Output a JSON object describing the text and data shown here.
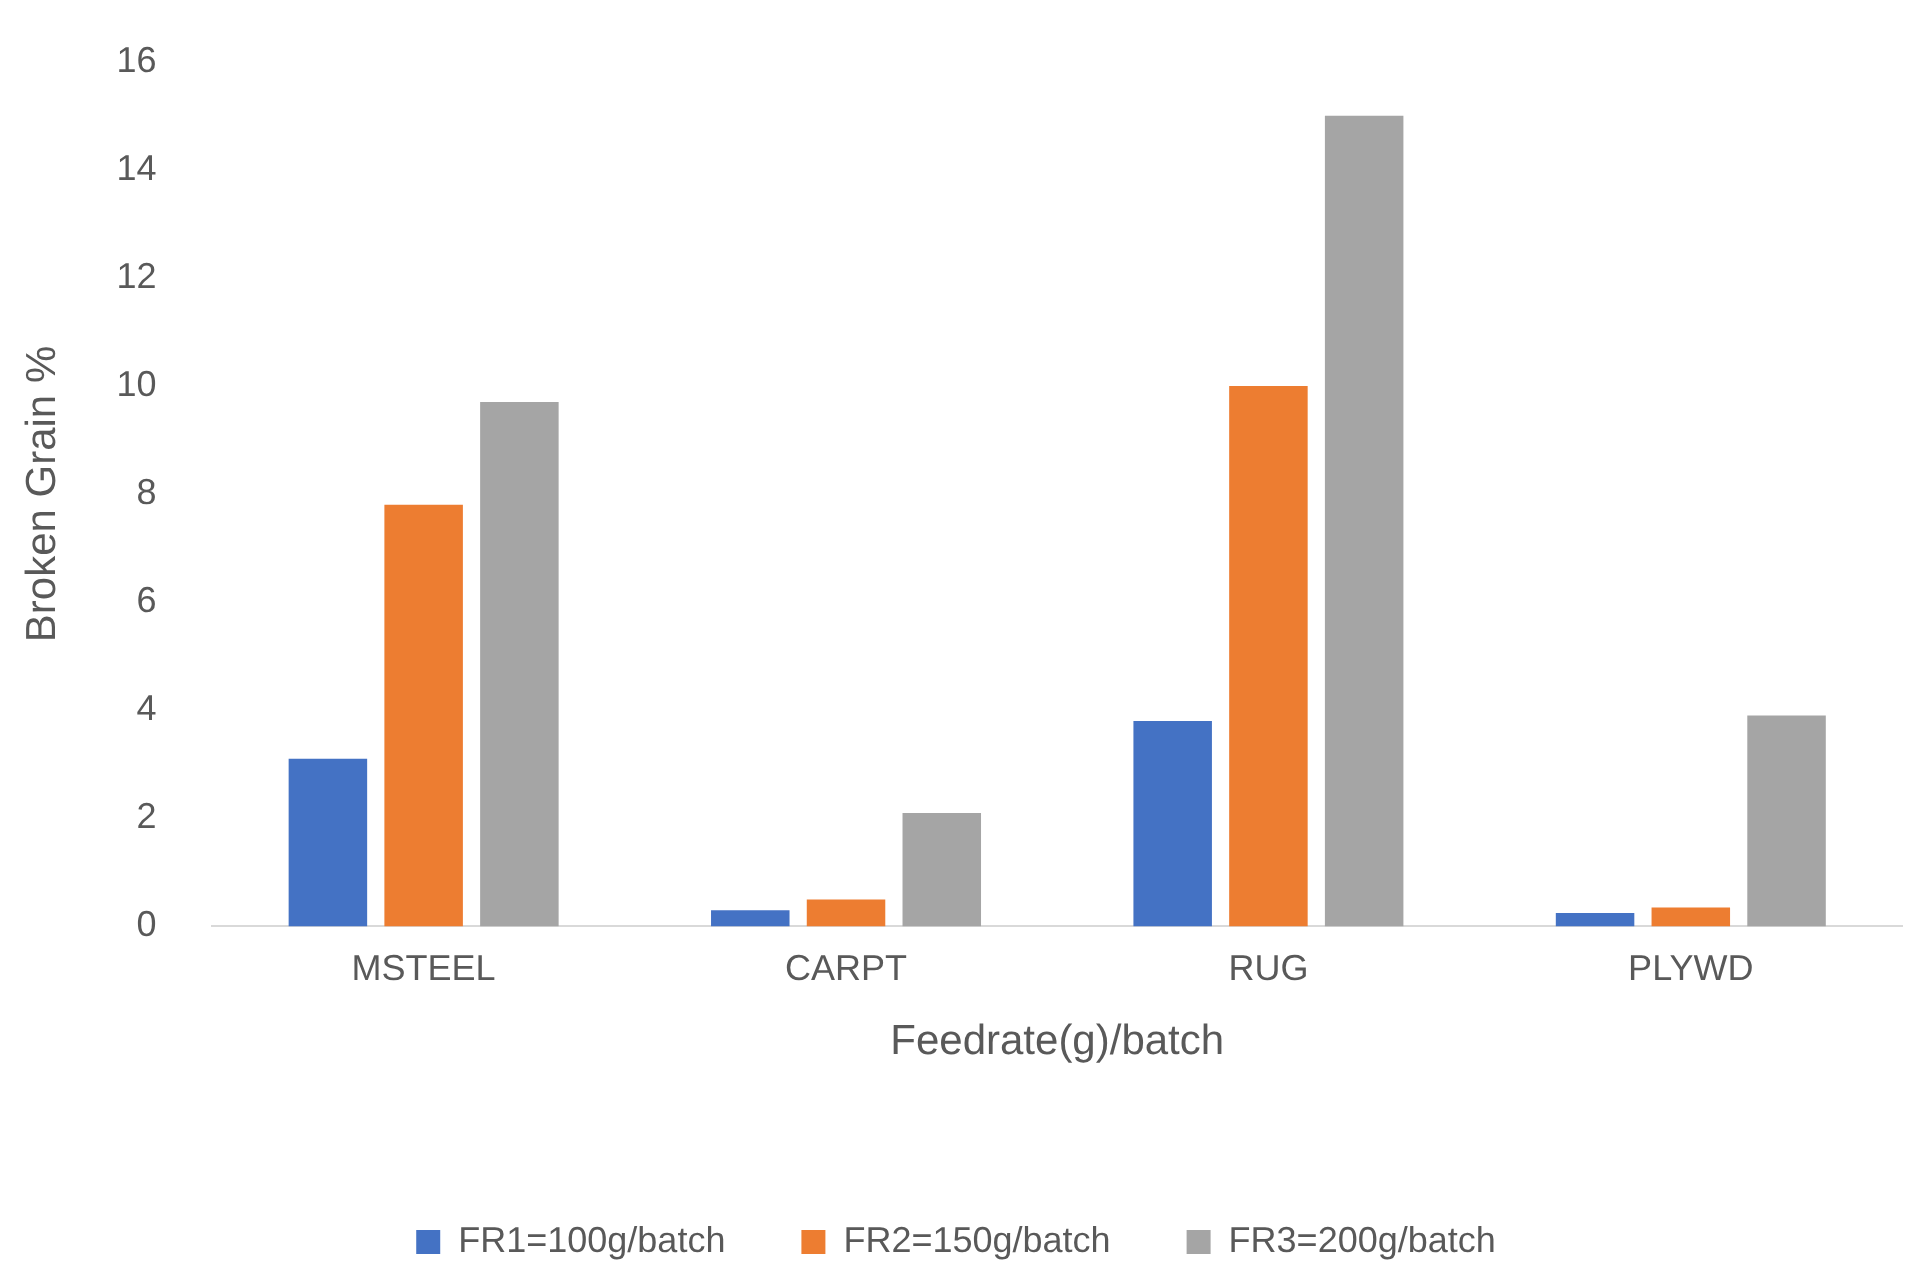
{
  "chart_data": {
    "type": "bar",
    "xlabel": "Feedrate(g)/batch",
    "ylabel": "Broken Grain %",
    "categories": [
      "MSTEEL",
      "CARPT",
      "RUG",
      "PLYWD"
    ],
    "series": [
      {
        "name": "FR1=100g/batch",
        "color": "#4472c4",
        "values": [
          3.1,
          0.3,
          3.8,
          0.25
        ]
      },
      {
        "name": "FR2=150g/batch",
        "color": "#ed7d31",
        "values": [
          7.8,
          0.5,
          10,
          0.35
        ]
      },
      {
        "name": "FR3=200g/batch",
        "color": "#a5a5a5",
        "values": [
          9.7,
          2.1,
          15,
          3.9
        ]
      }
    ],
    "ylim": [
      0,
      16
    ],
    "yticks": [
      0,
      2,
      4,
      6,
      8,
      10,
      12,
      14,
      16
    ],
    "legend": "bottom"
  }
}
